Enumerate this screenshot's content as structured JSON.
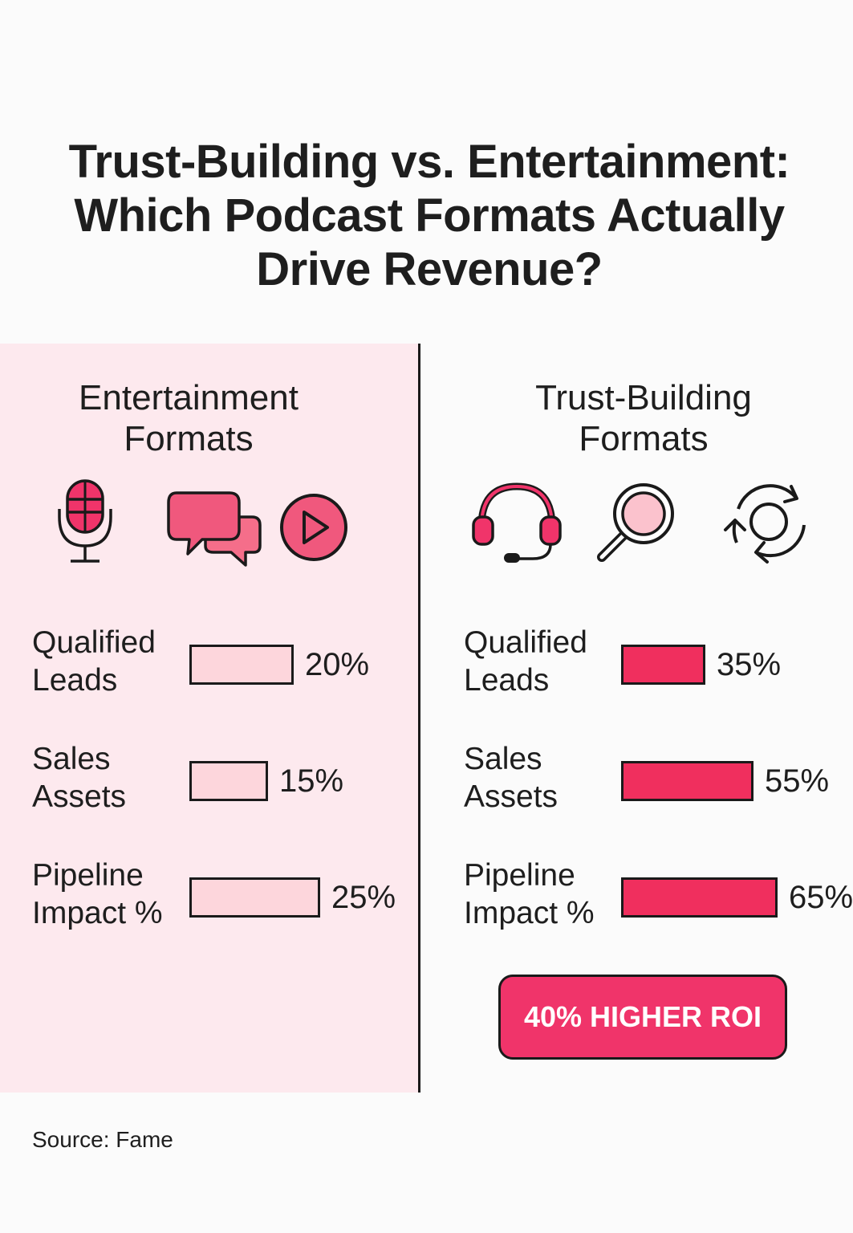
{
  "title": {
    "line1": "Trust-Building vs. Entertainment:",
    "line2": "Which Podcast Formats Actually",
    "line3": "Drive Revenue?"
  },
  "colors": {
    "accent": "#f0346a",
    "left_bar_fill": "#fdd6dc",
    "right_bar_fill": "#f02f5e",
    "left_panel_bg": "#fde9ee"
  },
  "columns": {
    "left": {
      "heading_line1": "Entertainment",
      "heading_line2": "Formats",
      "icons": [
        "microphone-icon",
        "chat-bubbles-icon",
        "play-button-icon"
      ]
    },
    "right": {
      "heading_line1": "Trust-Building",
      "heading_line2": "Formats",
      "icons": [
        "headset-icon",
        "magnifier-icon",
        "refresh-cycle-icon"
      ]
    }
  },
  "chart_data": {
    "type": "bar",
    "categories": [
      "Qualified Leads",
      "Sales Assets",
      "Pipeline Impact %"
    ],
    "category_lines": [
      [
        "Qualified",
        "Leads"
      ],
      [
        "Sales",
        "Assets"
      ],
      [
        "Pipeline",
        "Impact %"
      ]
    ],
    "series": [
      {
        "name": "Entertainment Formats",
        "values": [
          20,
          15,
          25
        ],
        "labels": [
          "20%",
          "15%",
          "25%"
        ]
      },
      {
        "name": "Trust-Building Formats",
        "values": [
          35,
          55,
          65
        ],
        "labels": [
          "35%",
          "55%",
          "65%"
        ]
      }
    ]
  },
  "roi_badge": "40% HIGHER ROI",
  "source": "Source: Fame"
}
